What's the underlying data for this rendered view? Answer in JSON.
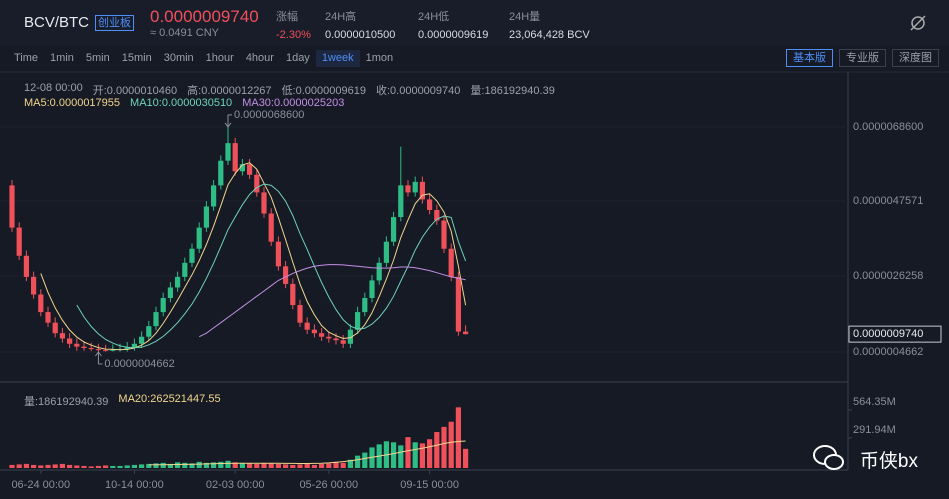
{
  "header": {
    "pair": "BCV/BTC",
    "badge": "创业板",
    "price": "0.0000009740",
    "cny": "≈ 0.0491 CNY",
    "stats": [
      {
        "label": "涨幅",
        "value": "-2.30%"
      },
      {
        "label": "24H高",
        "value": "0.0000010500"
      },
      {
        "label": "24H低",
        "value": "0.0000009619"
      },
      {
        "label": "24H量",
        "value": "23,064,428 BCV"
      }
    ]
  },
  "tabs": [
    "Time",
    "1min",
    "5min",
    "15min",
    "30min",
    "1hour",
    "4hour",
    "1day",
    "1week",
    "1mon"
  ],
  "active_tab": "1week",
  "versions": [
    "基本版",
    "专业版",
    "深度图"
  ],
  "active_version": "基本版",
  "watermark": "币侠bx",
  "chart_data": {
    "type": "candlestick",
    "ohlc_header": [
      "12-08 00:00",
      "开:0.0000010460",
      "高:0.0000012267",
      "低:0.0000009619",
      "收:0.0000009740",
      "量:186192940.39"
    ],
    "categories": [
      null,
      null,
      null,
      null,
      "06-24 00:00",
      null,
      null,
      null,
      null,
      null,
      null,
      null,
      null,
      null,
      null,
      null,
      null,
      "10-14 00:00",
      null,
      null,
      null,
      null,
      null,
      null,
      null,
      null,
      null,
      null,
      null,
      null,
      null,
      "02-03 00:00",
      null,
      null,
      null,
      null,
      null,
      null,
      null,
      null,
      null,
      null,
      null,
      null,
      "05-26 00:00",
      null,
      null,
      null,
      null,
      null,
      null,
      null,
      null,
      null,
      null,
      null,
      null,
      null,
      "09-15 00:00",
      null,
      null,
      null,
      null,
      null
    ],
    "open": [
      5.2e-06,
      4e-06,
      3.2e-06,
      2.6e-06,
      2.1e-06,
      1.6e-06,
      1.3e-06,
      1e-06,
      8.5e-07,
      7e-07,
      6.2e-07,
      5.8e-07,
      5.5e-07,
      5.2e-07,
      5e-07,
      5.3e-07,
      5.5e-07,
      6e-07,
      7e-07,
      9e-07,
      1.2e-06,
      1.6e-06,
      2e-06,
      2.3e-06,
      2.6e-06,
      3e-06,
      3.4e-06,
      4e-06,
      4.6e-06,
      5.2e-06,
      5.9e-06,
      6.4e-06,
      5.6e-06,
      5.8e-06,
      5.5e-06,
      5e-06,
      4.4e-06,
      3.6e-06,
      2.9e-06,
      2.4e-06,
      1.8e-06,
      1.3e-06,
      1.1e-06,
      1e-06,
      9e-07,
      8.5e-07,
      8e-07,
      7e-07,
      1.1e-06,
      1.6e-06,
      2e-06,
      2.5e-06,
      3e-06,
      3.6e-06,
      4.3e-06,
      5.2e-06,
      5e-06,
      5.3e-06,
      4.8e-06,
      4.5e-06,
      4.2e-06,
      3.4e-06,
      2.6e-06,
      1.046e-06
    ],
    "high": [
      5.35e-06,
      4.15e-06,
      3.35e-06,
      2.75e-06,
      2.25e-06,
      1.75e-06,
      1.45e-06,
      1.15e-06,
      1e-06,
      8.5e-07,
      7.7e-07,
      7.3e-07,
      7e-07,
      6.7e-07,
      6.8e-07,
      7e-07,
      7.5e-07,
      8.5e-07,
      1.05e-06,
      1.35e-06,
      1.75e-06,
      2.15e-06,
      2.45e-06,
      2.75e-06,
      3.15e-06,
      3.55e-06,
      4.15e-06,
      4.75e-06,
      5.35e-06,
      6.05e-06,
      6.86e-06,
      6.55e-06,
      5.95e-06,
      5.95e-06,
      5.65e-06,
      5.15e-06,
      4.55e-06,
      3.75e-06,
      3.05e-06,
      2.55e-06,
      1.95e-06,
      1.45e-06,
      1.25e-06,
      1.15e-06,
      1.05e-06,
      1e-06,
      9.5e-07,
      1.25e-06,
      1.75e-06,
      2.15e-06,
      2.65e-06,
      3.15e-06,
      3.75e-06,
      4.45e-06,
      6.3e-06,
      5.35e-06,
      5.45e-06,
      5.45e-06,
      4.95e-06,
      4.65e-06,
      4.35e-06,
      3.55e-06,
      2.75e-06,
      1.2267e-06
    ],
    "low": [
      3.88e-06,
      3.08e-06,
      2.48e-06,
      1.98e-06,
      1.48e-06,
      1.18e-06,
      8.8e-07,
      7.3e-07,
      5.8e-07,
      5e-07,
      5e-07,
      4.9e-07,
      4.662e-07,
      4.8e-07,
      4.8e-07,
      4.8e-07,
      4.8e-07,
      5e-07,
      5.8e-07,
      7.8e-07,
      1.08e-06,
      1.48e-06,
      1.88e-06,
      2.18e-06,
      2.48e-06,
      2.88e-06,
      3.28e-06,
      3.88e-06,
      4.48e-06,
      5.08e-06,
      5.78e-06,
      5.48e-06,
      5.48e-06,
      5.38e-06,
      4.88e-06,
      4.28e-06,
      3.48e-06,
      2.78e-06,
      2.28e-06,
      1.68e-06,
      1.18e-06,
      9.8e-07,
      8.8e-07,
      7.8e-07,
      7.3e-07,
      6.8e-07,
      5.8e-07,
      5.8e-07,
      9.8e-07,
      1.48e-06,
      1.88e-06,
      2.38e-06,
      2.88e-06,
      3.48e-06,
      4.18e-06,
      4.88e-06,
      4.88e-06,
      4.68e-06,
      4.38e-06,
      4.08e-06,
      3.28e-06,
      2.48e-06,
      9.3e-07,
      9.619e-07
    ],
    "close": [
      4e-06,
      3.2e-06,
      2.6e-06,
      2.1e-06,
      1.6e-06,
      1.3e-06,
      1e-06,
      8.5e-07,
      7e-07,
      6.2e-07,
      5.8e-07,
      5.5e-07,
      5.2e-07,
      5e-07,
      5.3e-07,
      5.5e-07,
      6e-07,
      7e-07,
      9e-07,
      1.2e-06,
      1.6e-06,
      2e-06,
      2.3e-06,
      2.6e-06,
      3e-06,
      3.4e-06,
      4e-06,
      4.6e-06,
      5.2e-06,
      5.9e-06,
      6.4e-06,
      5.6e-06,
      5.8e-06,
      5.5e-06,
      5e-06,
      4.4e-06,
      3.6e-06,
      2.9e-06,
      2.4e-06,
      1.8e-06,
      1.3e-06,
      1.1e-06,
      1e-06,
      9e-07,
      8.5e-07,
      8e-07,
      7e-07,
      1.1e-06,
      1.6e-06,
      2e-06,
      2.5e-06,
      3e-06,
      3.6e-06,
      4.3e-06,
      5.2e-06,
      5e-06,
      5.3e-06,
      4.8e-06,
      4.5e-06,
      4.2e-06,
      3.4e-06,
      2.6e-06,
      1.046e-06,
      9.74e-07
    ],
    "up_color": "#2ebd85",
    "down_color": "#f0505a",
    "ma": [
      {
        "legend": "MA5:0.0000017955",
        "color": "#f3d58d",
        "values": [
          null,
          null,
          null,
          null,
          2.7e-06,
          2.16e-06,
          1.72e-06,
          1.37e-06,
          1.09e-06,
          8.9e-07,
          7.5e-07,
          6.6e-07,
          5.9e-07,
          5.5e-07,
          5.4e-07,
          5.3e-07,
          5.4e-07,
          5.8e-07,
          6.6e-07,
          7.9e-07,
          1e-06,
          1.28e-06,
          1.6e-06,
          1.94e-06,
          2.3e-06,
          2.66e-06,
          3.06e-06,
          3.52e-06,
          4.04e-06,
          4.62e-06,
          5.22e-06,
          5.54e-06,
          5.78e-06,
          5.84e-06,
          5.66e-06,
          5.26e-06,
          4.86e-06,
          4.28e-06,
          3.66e-06,
          3.02e-06,
          2.4e-06,
          1.9e-06,
          1.52e-06,
          1.22e-06,
          1.03e-06,
          9.3e-07,
          8.5e-07,
          8.7e-07,
          1.01e-06,
          1.24e-06,
          1.58e-06,
          2.04e-06,
          2.54e-06,
          3.08e-06,
          3.72e-06,
          4.22e-06,
          4.68e-06,
          4.92e-06,
          4.96e-06,
          4.76e-06,
          4.44e-06,
          3.9e-06,
          2.9e-06,
          1.7955e-06
        ]
      },
      {
        "legend": "MA10:0.0000030510",
        "color": "#6fd3b8",
        "values": [
          null,
          null,
          null,
          null,
          null,
          null,
          null,
          null,
          null,
          1.8e-06,
          1.46e-06,
          1.19e-06,
          9.8e-07,
          8.2e-07,
          7.2e-07,
          6.4e-07,
          6e-07,
          5.9e-07,
          6e-07,
          6.7e-07,
          7.7e-07,
          9.1e-07,
          1.09e-06,
          1.3e-06,
          1.55e-06,
          1.83e-06,
          2.17e-06,
          2.56e-06,
          2.99e-06,
          3.46e-06,
          3.94e-06,
          4.3e-06,
          4.65e-06,
          4.94e-06,
          5.14e-06,
          5.24e-06,
          5.2e-06,
          5.03e-06,
          4.75e-06,
          4.34e-06,
          3.83e-06,
          3.38e-06,
          2.9e-06,
          2.44e-06,
          2.03e-06,
          1.67e-06,
          1.38e-06,
          1.2e-06,
          1.12e-06,
          1.14e-06,
          1.26e-06,
          1.45e-06,
          1.71e-06,
          2.05e-06,
          2.48e-06,
          2.9e-06,
          3.36e-06,
          3.73e-06,
          4.02e-06,
          4.24e-06,
          4.33e-06,
          4.29e-06,
          3.6e-06,
          3.051e-06
        ]
      },
      {
        "legend": "MA30:0.0000025203",
        "color": "#c48ee6",
        "values": [
          null,
          null,
          null,
          null,
          null,
          null,
          null,
          null,
          null,
          null,
          null,
          null,
          null,
          null,
          null,
          null,
          null,
          null,
          null,
          null,
          null,
          null,
          null,
          null,
          null,
          null,
          9e-07,
          1e-06,
          1.15e-06,
          1.3e-06,
          1.45e-06,
          1.6e-06,
          1.75e-06,
          1.9e-06,
          2.05e-06,
          2.2e-06,
          2.35e-06,
          2.5e-06,
          2.6e-06,
          2.7e-06,
          2.78e-06,
          2.85e-06,
          2.9e-06,
          2.93e-06,
          2.95e-06,
          2.95e-06,
          2.94e-06,
          2.92e-06,
          2.9e-06,
          2.88e-06,
          2.86e-06,
          2.85e-06,
          2.85e-06,
          2.86e-06,
          2.88e-06,
          2.88e-06,
          2.86e-06,
          2.82e-06,
          2.78e-06,
          2.72e-06,
          2.66e-06,
          2.6e-06,
          2.56e-06,
          2.5203e-06
        ]
      }
    ],
    "ylim": [
      -3.86e-07,
      8.392e-06
    ],
    "yticks": [
      {
        "value": 6.86e-06,
        "label": "0.0000068600"
      },
      {
        "value": 4.7571e-06,
        "label": "0.0000047571"
      },
      {
        "value": 2.6258e-06,
        "label": "0.0000026258"
      },
      {
        "value": 4.662e-07,
        "label": "0.0000004662"
      }
    ],
    "grid": true,
    "annotations": [
      {
        "label": "0.0000068600",
        "value": 6.86e-06
      },
      {
        "label": "0.0000004662",
        "value": 4.662e-07
      }
    ],
    "last_price": {
      "label": "0.0000009740",
      "value": 9.74e-07
    },
    "volume": {
      "legend": "量:186192940.39",
      "values": [
        30000000.0,
        35000000.0,
        40000000.0,
        30000000.0,
        25000000.0,
        30000000.0,
        35000000.0,
        40000000.0,
        30000000.0,
        25000000.0,
        20000000.0,
        15000000.0,
        20000000.0,
        25000000.0,
        20000000.0,
        20000000.0,
        25000000.0,
        30000000.0,
        35000000.0,
        40000000.0,
        45000000.0,
        50000000.0,
        40000000.0,
        55000000.0,
        50000000.0,
        45000000.0,
        60000000.0,
        50000000.0,
        55000000.0,
        60000000.0,
        70000000.0,
        55000000.0,
        50000000.0,
        45000000.0,
        40000000.0,
        50000000.0,
        45000000.0,
        40000000.0,
        35000000.0,
        30000000.0,
        35000000.0,
        40000000.0,
        30000000.0,
        40000000.0,
        45000000.0,
        60000000.0,
        50000000.0,
        80000000.0,
        120000000.0,
        150000000.0,
        200000000.0,
        230000000.0,
        260000000.0,
        250000000.0,
        220000000.0,
        300000000.0,
        250000000.0,
        240000000.0,
        280000000.0,
        350000000.0,
        400000000.0,
        450000000.0,
        590000000.0,
        186192940.39
      ],
      "ma": {
        "legend": "MA20:262521447.55",
        "color": "#f3d58d",
        "values": [
          null,
          null,
          null,
          null,
          null,
          null,
          null,
          null,
          null,
          null,
          null,
          null,
          null,
          null,
          null,
          null,
          null,
          null,
          null,
          30000000.0,
          31000000.0,
          32000000.0,
          33000000.0,
          34000000.0,
          35000000.0,
          37000000.0,
          38000000.0,
          40000000.0,
          42000000.0,
          44000000.0,
          45000000.0,
          46000000.0,
          47000000.0,
          47000000.0,
          47000000.0,
          47000000.0,
          46000000.0,
          46000000.0,
          45000000.0,
          45000000.0,
          44000000.0,
          44000000.0,
          45000000.0,
          46000000.0,
          50000000.0,
          55000000.0,
          62000000.0,
          70000000.0,
          80000000.0,
          92000000.0,
          104000000.0,
          116000000.0,
          127000000.0,
          140000000.0,
          155000000.0,
          168000000.0,
          180000000.0,
          193000000.0,
          207000000.0,
          222000000.0,
          238000000.0,
          250000000.0,
          258000000.0,
          262521447.55
        ]
      },
      "ylim": [
        0,
        710000000.0
      ],
      "yticks": [
        {
          "value": 564350000,
          "label": "564.35M"
        },
        {
          "value": 291940000,
          "label": "291.94M"
        }
      ]
    }
  }
}
